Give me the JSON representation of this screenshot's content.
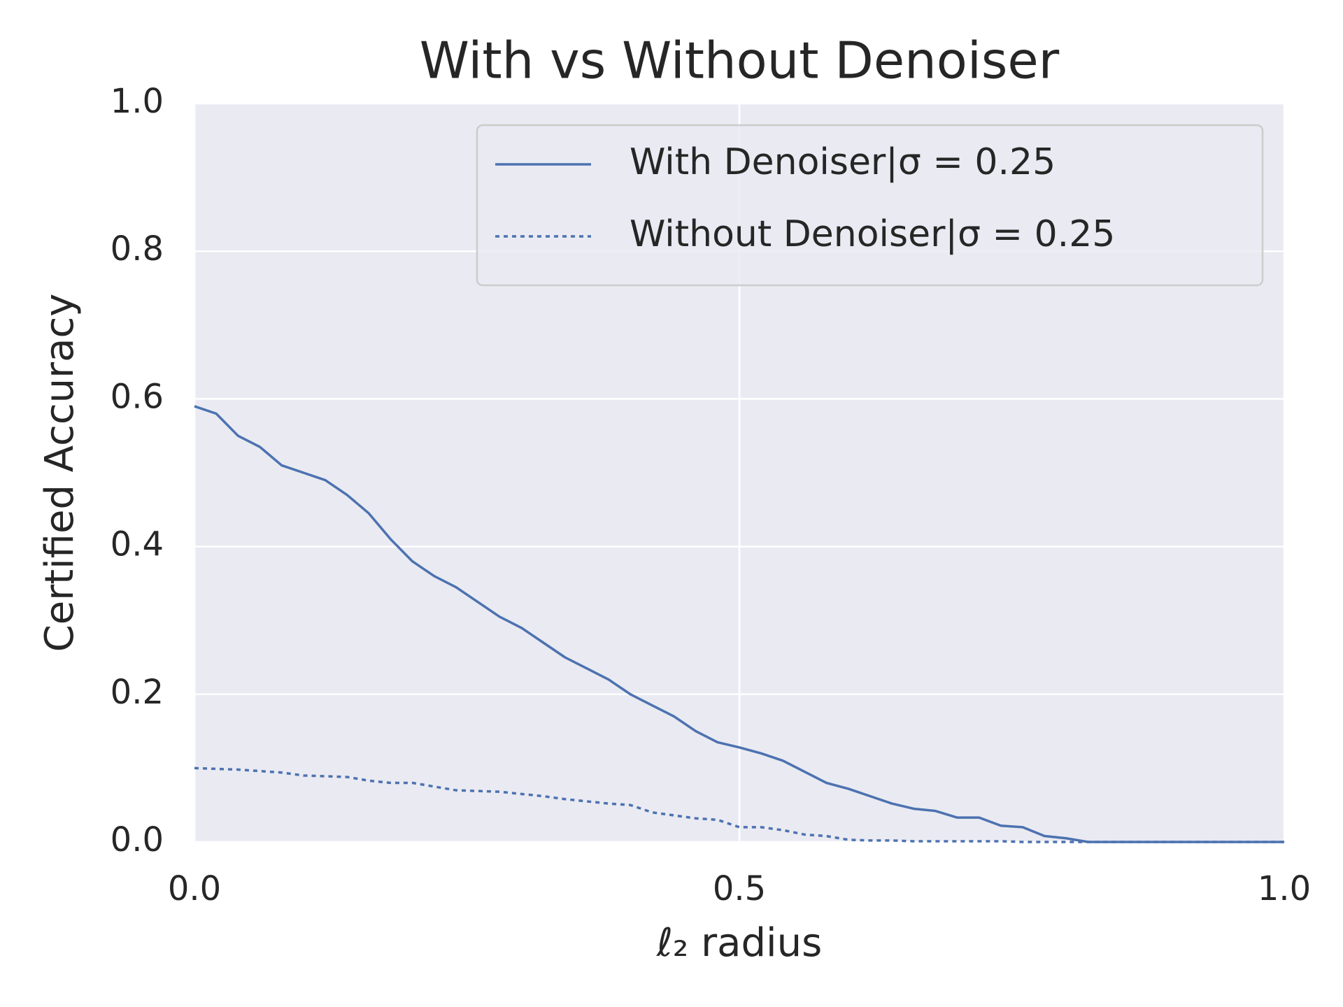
{
  "chart_data": {
    "type": "line",
    "title": "With vs Without Denoiser",
    "xlabel": "ℓ₂ radius",
    "ylabel": "Certified Accuracy",
    "x": [
      0,
      0.02,
      0.04,
      0.06,
      0.08,
      0.1,
      0.12,
      0.14,
      0.16,
      0.18,
      0.2,
      0.22,
      0.24,
      0.26,
      0.28,
      0.3,
      0.32,
      0.34,
      0.36,
      0.38,
      0.4,
      0.42,
      0.44,
      0.46,
      0.48,
      0.5,
      0.52,
      0.54,
      0.56,
      0.58,
      0.6,
      0.62,
      0.64,
      0.66,
      0.68,
      0.7,
      0.72,
      0.74,
      0.76,
      0.78,
      0.8,
      0.82,
      0.84,
      0.86,
      0.88,
      0.9,
      0.92,
      0.94,
      0.96,
      0.98,
      1.0
    ],
    "series": [
      {
        "name": "With Denoiser|σ = 0.25",
        "color": "#4c72b0",
        "dash": false,
        "values": [
          0.59,
          0.58,
          0.55,
          0.535,
          0.51,
          0.5,
          0.49,
          0.47,
          0.445,
          0.41,
          0.38,
          0.36,
          0.345,
          0.325,
          0.305,
          0.29,
          0.27,
          0.25,
          0.235,
          0.22,
          0.2,
          0.185,
          0.17,
          0.15,
          0.135,
          0.128,
          0.12,
          0.11,
          0.095,
          0.08,
          0.072,
          0.062,
          0.052,
          0.045,
          0.042,
          0.033,
          0.033,
          0.022,
          0.02,
          0.008,
          0.005,
          0,
          0,
          0,
          0,
          0,
          0,
          0,
          0,
          0,
          0
        ]
      },
      {
        "name": "Without Denoiser|σ = 0.25",
        "color": "#4c72b0",
        "dash": true,
        "values": [
          0.1,
          0.099,
          0.098,
          0.096,
          0.094,
          0.09,
          0.089,
          0.088,
          0.083,
          0.08,
          0.08,
          0.075,
          0.07,
          0.069,
          0.068,
          0.065,
          0.062,
          0.058,
          0.055,
          0.052,
          0.05,
          0.04,
          0.036,
          0.032,
          0.03,
          0.02,
          0.02,
          0.016,
          0.01,
          0.008,
          0.003,
          0.002,
          0.002,
          0.001,
          0.001,
          0.001,
          0.001,
          0.001,
          0,
          0,
          0,
          0,
          0,
          0,
          0,
          0,
          0,
          0,
          0,
          0,
          0
        ]
      }
    ],
    "xlim": [
      0,
      1
    ],
    "ylim": [
      0,
      1
    ],
    "xticks": [
      {
        "value": 0,
        "label": "0.0"
      },
      0.5,
      {
        "value": 1,
        "label": "1.0"
      }
    ],
    "yticks": [
      {
        "value": 0,
        "label": "0.0"
      },
      0.2,
      0.4,
      0.6,
      0.8,
      {
        "value": 1,
        "label": "1.0"
      }
    ],
    "grid": true,
    "legend": "upper right"
  }
}
